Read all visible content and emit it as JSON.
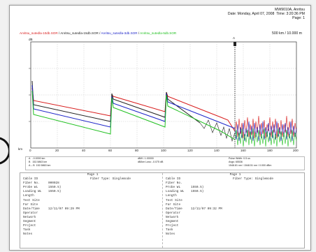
{
  "header": {
    "device": "MW9010A, Anritsu",
    "date": "Date: Monday, April 07, 2008",
    "time": "Time: 3:20:36 PM",
    "page": "Page: 1"
  },
  "legend": [
    {
      "text": "Anritsu_sutedla-10db.SOR",
      "color": "#d81c1c"
    },
    {
      "text": "Anritsu_sutedla-15db.SOR",
      "color": "#222222"
    },
    {
      "text": "Anritsu_sutedla-3db.SOR",
      "color": "#1c24c8"
    },
    {
      "text": "Anritsu_sutedla-5db.SOR",
      "color": "#20c020"
    }
  ],
  "scale_label": "500 km / 10.000 m",
  "y_unit": "dB",
  "x_unit": "km",
  "marker_label": "A",
  "x_ticks": [
    "0",
    "20",
    "40",
    "60",
    "80",
    "100",
    "120",
    "140",
    "160",
    "180",
    "200"
  ],
  "readout": {
    "a_label": "A",
    "a_value": "-0.0000 km",
    "b_label": "B",
    "b_value": "152.5863 km",
    "ab_label": "A – B",
    "ab_value": "152.5863 km",
    "mid1": "dB/K: 1.00000",
    "mid2": "dB/km Loss: -0.075 dB",
    "right1": "Pulse Width: 0.5 us",
    "right2": "Avgs: 65536",
    "right3": "1548.81 nm / 1548.51 nm / 0.000 dBm"
  },
  "info": [
    {
      "page_label": "Page 1",
      "fiber_type": "Fiber Type: Singlemode",
      "rows": [
        {
          "k": "Cable ID",
          "v": ""
        },
        {
          "k": "Fiber No.",
          "v": "000028"
        },
        {
          "k": "Probe WL",
          "v": "1550.5)"
        },
        {
          "k": "Loading WL",
          "v": "1550.5)"
        },
        {
          "k": "Length",
          "v": ""
        },
        {
          "k": "Test Site",
          "v": ""
        },
        {
          "k": "Far Site",
          "v": ""
        },
        {
          "k": "Date/Time",
          "v": "12/11/07   09:29 PM"
        },
        {
          "k": "Operator",
          "v": ""
        },
        {
          "k": "Network",
          "v": ""
        },
        {
          "k": "Segment",
          "v": ""
        },
        {
          "k": "Project",
          "v": ""
        },
        {
          "k": "Task",
          "v": ""
        },
        {
          "k": "Notes",
          "v": ""
        }
      ]
    },
    {
      "page_label": "Page 1",
      "fiber_type": "Fiber Type: Singlemode",
      "rows": [
        {
          "k": "Cable ID",
          "v": ""
        },
        {
          "k": "Fiber No.",
          "v": ""
        },
        {
          "k": "Probe WL",
          "v": "1550.5)"
        },
        {
          "k": "Loading WL",
          "v": "1550.5)"
        },
        {
          "k": "Length",
          "v": ""
        },
        {
          "k": "Test Site",
          "v": ""
        },
        {
          "k": "Far Site",
          "v": ""
        },
        {
          "k": "Date/Time",
          "v": "12/11/07   09:32 PM"
        },
        {
          "k": "Operator",
          "v": ""
        },
        {
          "k": "Network",
          "v": ""
        },
        {
          "k": "Segment",
          "v": ""
        },
        {
          "k": "Project",
          "v": ""
        },
        {
          "k": "Task",
          "v": ""
        },
        {
          "k": "Notes",
          "v": ""
        }
      ]
    }
  ]
}
